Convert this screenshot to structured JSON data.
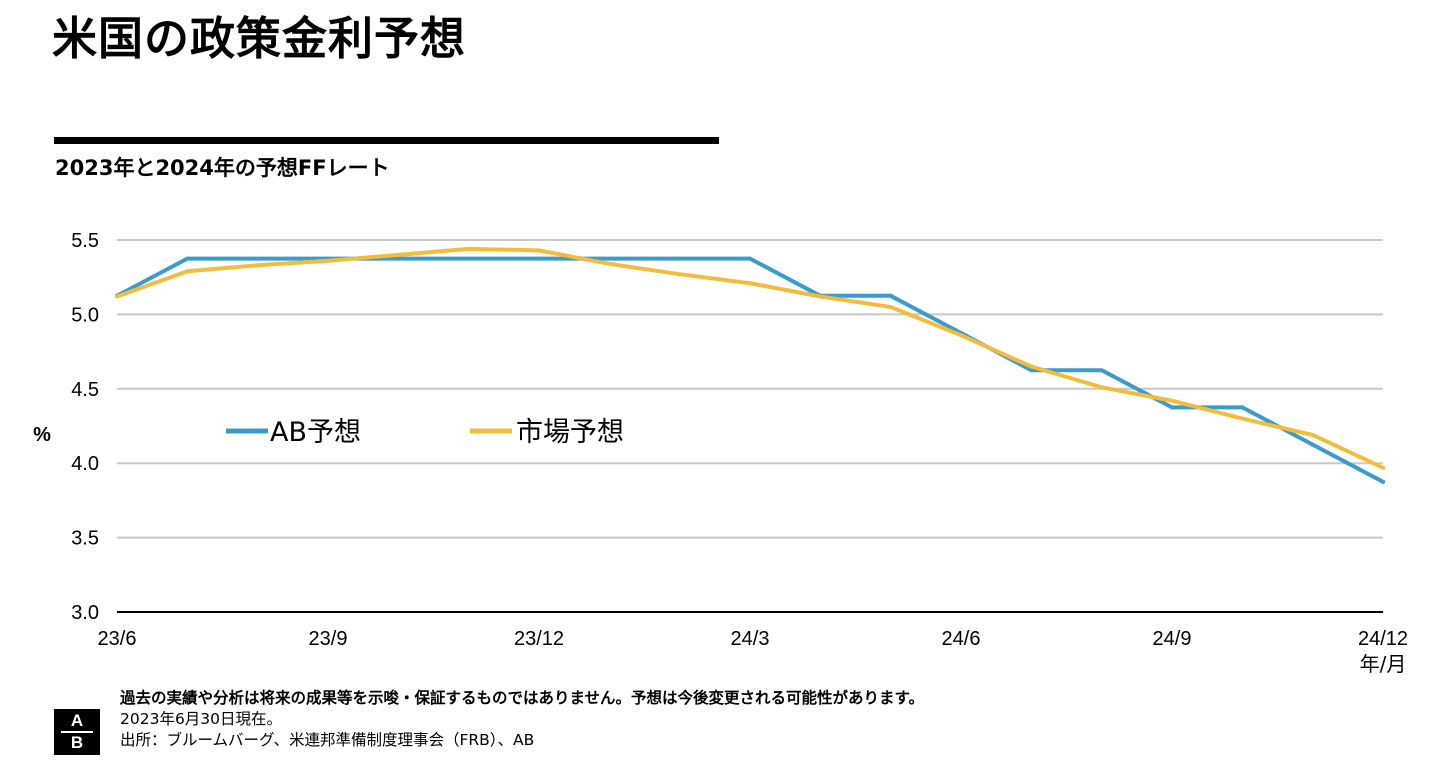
{
  "title": "米国の政策金利予想",
  "subtitle": "2023年と2024年の予想FFレート",
  "chart_data": {
    "type": "line",
    "ylabel": "%",
    "xlabel": "年/月",
    "ylim": [
      3.0,
      5.5
    ],
    "yticks": [
      "5.5",
      "5.0",
      "4.5",
      "4.0",
      "3.5",
      "3.0"
    ],
    "ytick_values": [
      5.5,
      5.0,
      4.5,
      4.0,
      3.5,
      3.0
    ],
    "xticks": [
      "23/6",
      "23/9",
      "23/12",
      "24/3",
      "24/6",
      "24/9",
      "24/12"
    ],
    "xtick_values": [
      0,
      3,
      6,
      9,
      12,
      15,
      18
    ],
    "xlim": [
      0,
      18
    ],
    "grid": true,
    "legend_position": "center-left",
    "series": [
      {
        "name": "AB予想",
        "color": "#3a9bcc",
        "x": [
          0,
          1,
          3,
          6,
          9,
          10,
          11,
          12,
          13,
          14,
          15,
          16,
          17,
          18
        ],
        "y": [
          5.125,
          5.375,
          5.375,
          5.375,
          5.375,
          5.125,
          5.125,
          4.875,
          4.625,
          4.625,
          4.375,
          4.375,
          4.125,
          3.875
        ]
      },
      {
        "name": "市場予想",
        "color": "#f2bd3d",
        "x": [
          0,
          1,
          2,
          3,
          4,
          5,
          6,
          7,
          8,
          9,
          10,
          11,
          12,
          13,
          14,
          15,
          16,
          17,
          18
        ],
        "y": [
          5.12,
          5.29,
          5.33,
          5.36,
          5.4,
          5.44,
          5.43,
          5.34,
          5.27,
          5.21,
          5.12,
          5.05,
          4.86,
          4.65,
          4.51,
          4.42,
          4.3,
          4.19,
          3.97
        ]
      }
    ]
  },
  "footnotes": {
    "disclaimer": "過去の実績や分析は将来の成果等を示唆・保証するものではありません。予想は今後変更される可能性があります。",
    "asof": "2023年6月30日現在。",
    "source": "出所：ブルームバーグ、米連邦準備制度理事会（FRB）、AB"
  },
  "logo": {
    "top": "A",
    "bottom": "B"
  }
}
